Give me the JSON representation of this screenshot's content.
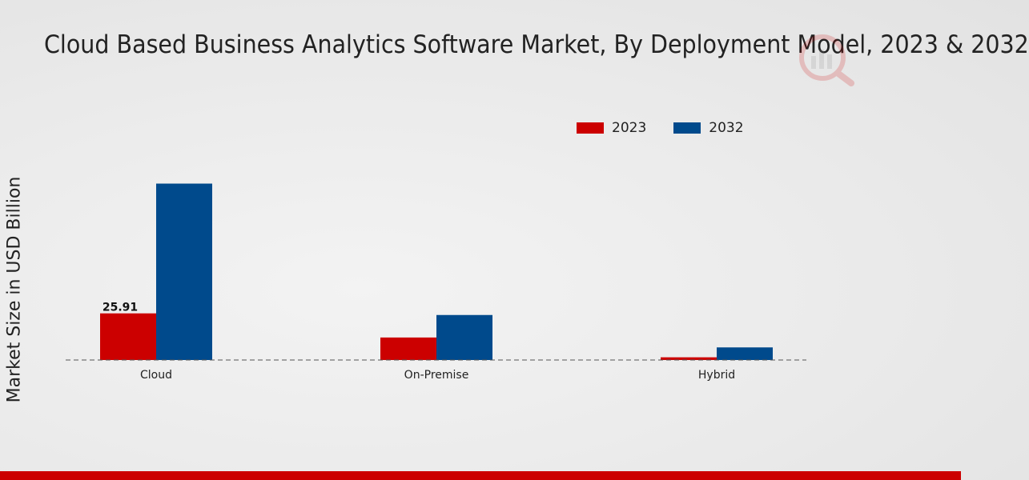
{
  "chart_data": {
    "type": "bar",
    "title": "Cloud Based Business Analytics Software Market, By Deployment Model, 2023 & 2032",
    "ylabel": "Market Size in USD Billion",
    "xlabel": "",
    "categories": [
      "Cloud",
      "On-Premise",
      "Hybrid"
    ],
    "series": [
      {
        "name": "2023",
        "values": [
          25.91,
          12.5,
          1.5
        ],
        "color": "#cc0000"
      },
      {
        "name": "2032",
        "values": [
          98.0,
          25.0,
          7.0
        ],
        "color": "#004a8c"
      }
    ],
    "data_labels": [
      {
        "series": 0,
        "category": 0,
        "text": "25.91"
      }
    ],
    "ylim": [
      0,
      200
    ],
    "grid": false,
    "legend_position": "top-right"
  },
  "colors": {
    "accent": "#cc0000",
    "secondary": "#004a8c"
  },
  "icons": {
    "logo": "market-research-logo-icon"
  }
}
